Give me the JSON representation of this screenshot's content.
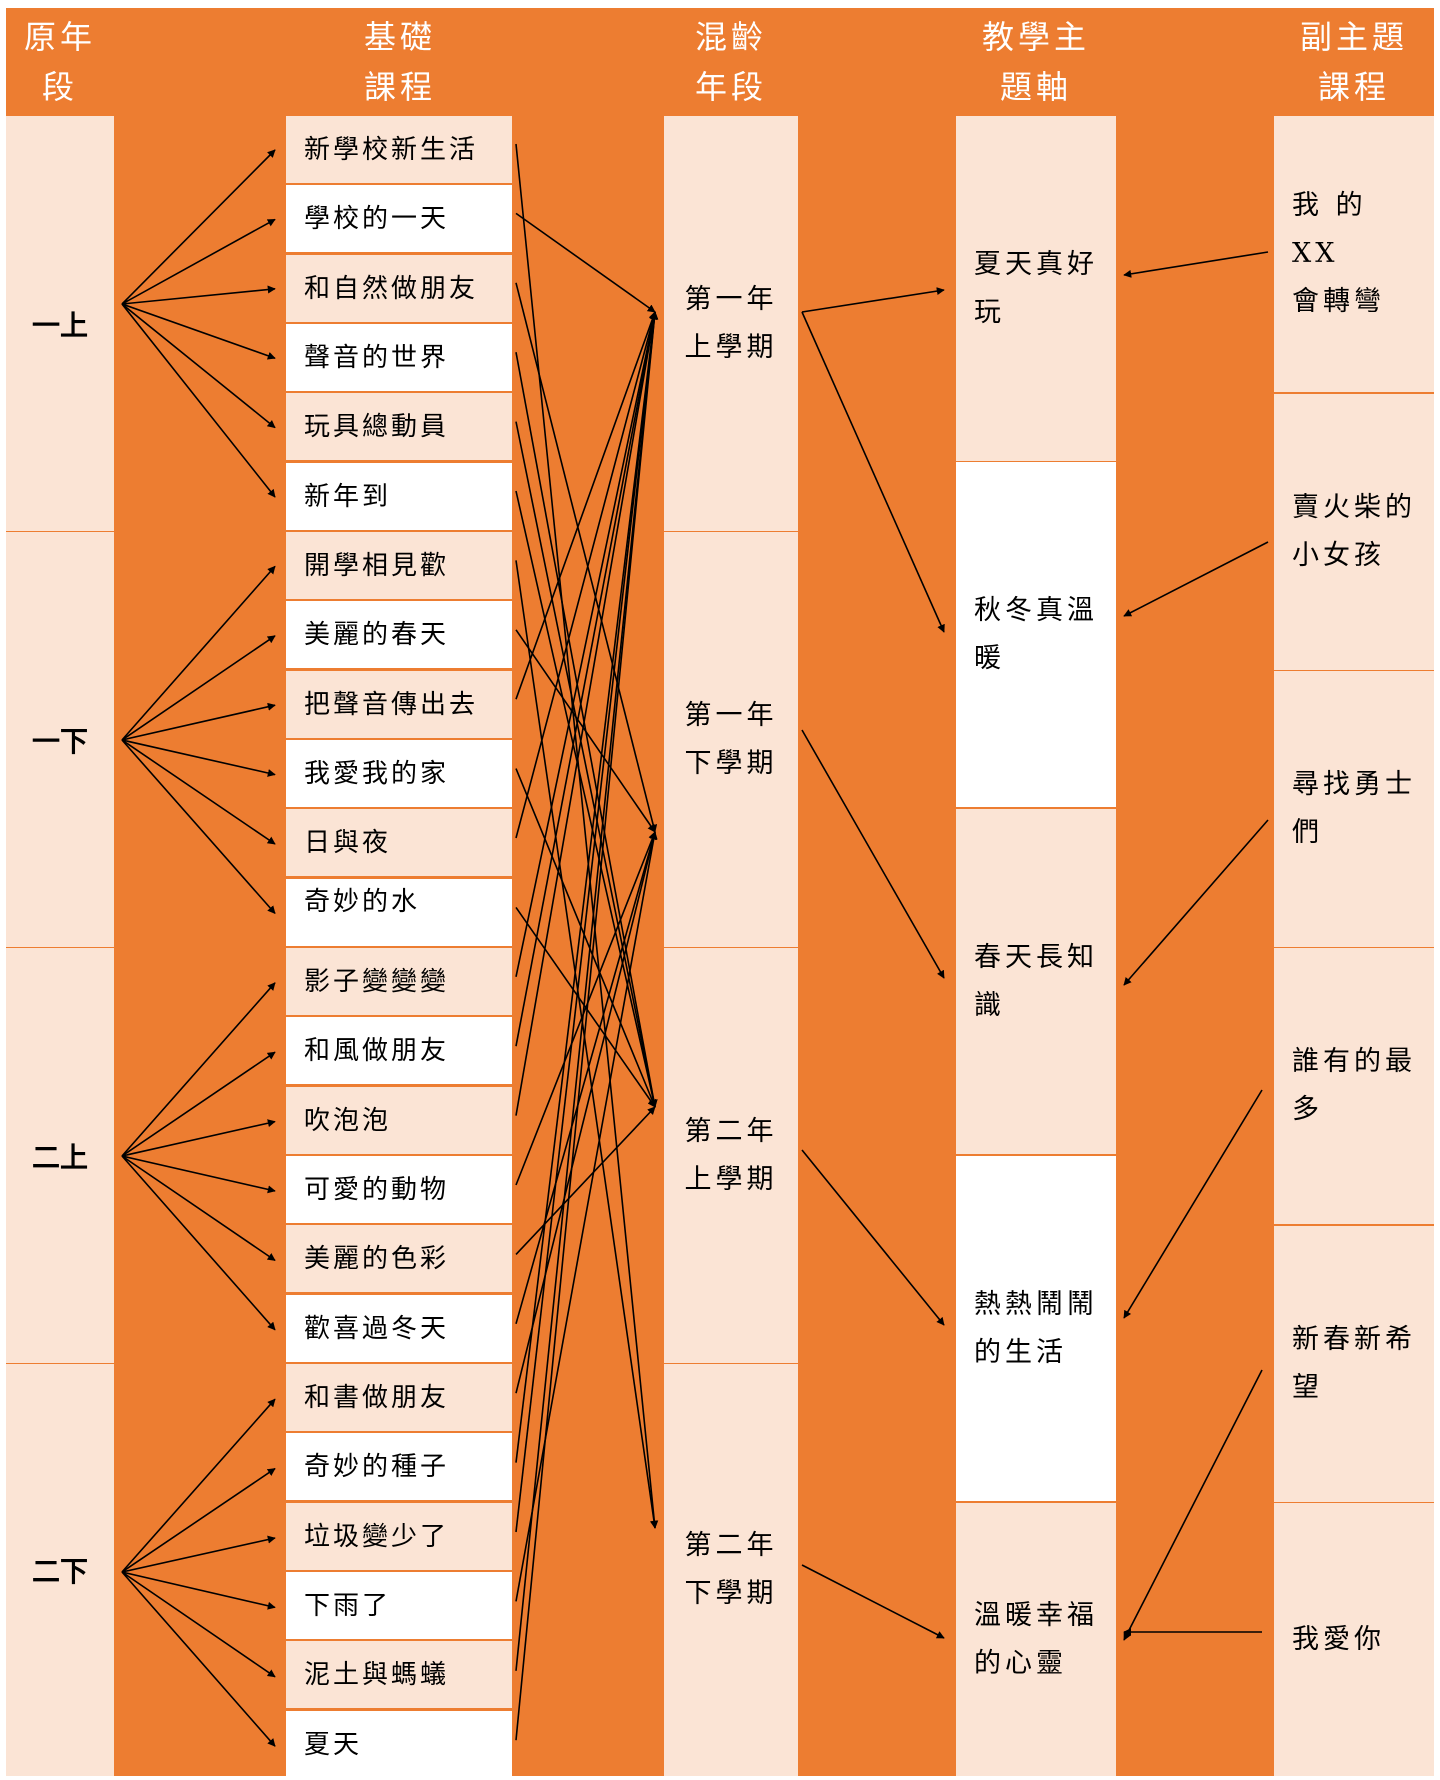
{
  "headers": {
    "original_grade": [
      "原年",
      "段"
    ],
    "basic_course": [
      "基礎",
      "課程"
    ],
    "mixed_age": [
      "混齡",
      "年段"
    ],
    "theme_axis": [
      "教學主",
      "題軸"
    ],
    "sub_theme": [
      "副主題",
      "課程"
    ]
  },
  "grades": [
    "一上",
    "一下",
    "二上",
    "二下"
  ],
  "courses": [
    "新學校新生活",
    "學校的一天",
    "和自然做朋友",
    "聲音的世界",
    "玩具總動員",
    "新年到",
    "開學相見歡",
    "美麗的春天",
    "把聲音傳出去",
    "我愛我的家",
    "日與夜",
    "奇妙的水",
    "影子變變變",
    "和風做朋友",
    "吹泡泡",
    "可愛的動物",
    "美麗的色彩",
    "歡喜過冬天",
    "和書做朋友",
    "奇妙的種子",
    "垃圾變少了",
    "下雨了",
    "泥土與螞蟻",
    "夏天"
  ],
  "mixed_age_terms": [
    [
      "第一年",
      "上學期"
    ],
    [
      "第一年",
      "下學期"
    ],
    [
      "第二年",
      "上學期"
    ],
    [
      "第二年",
      "下學期"
    ]
  ],
  "themes": [
    [
      "夏天真好",
      "玩"
    ],
    [
      "秋冬真溫",
      "暖"
    ],
    [
      "春天長知",
      "識"
    ],
    [
      "熱熱鬧鬧",
      "的生活"
    ],
    [
      "溫暖幸福",
      "的心靈"
    ]
  ],
  "sub_themes": [
    [
      "我 的 XX",
      "會轉彎"
    ],
    [
      "賣火柴的",
      "小女孩"
    ],
    [
      "尋找勇士",
      "們"
    ],
    [
      "誰有的最",
      "多"
    ],
    [
      "新春新希",
      "望"
    ],
    [
      "我愛你"
    ]
  ],
  "course_to_term": [
    3,
    0,
    1,
    2,
    2,
    2,
    3,
    1,
    0,
    2,
    0,
    2,
    0,
    0,
    0,
    1,
    2,
    1,
    1,
    0,
    0,
    1,
    0,
    0
  ],
  "colors": {
    "orange": "#ED7D31",
    "peach": "#FBE4D5",
    "white": "#FFFFFF",
    "arrow": "#000000"
  }
}
